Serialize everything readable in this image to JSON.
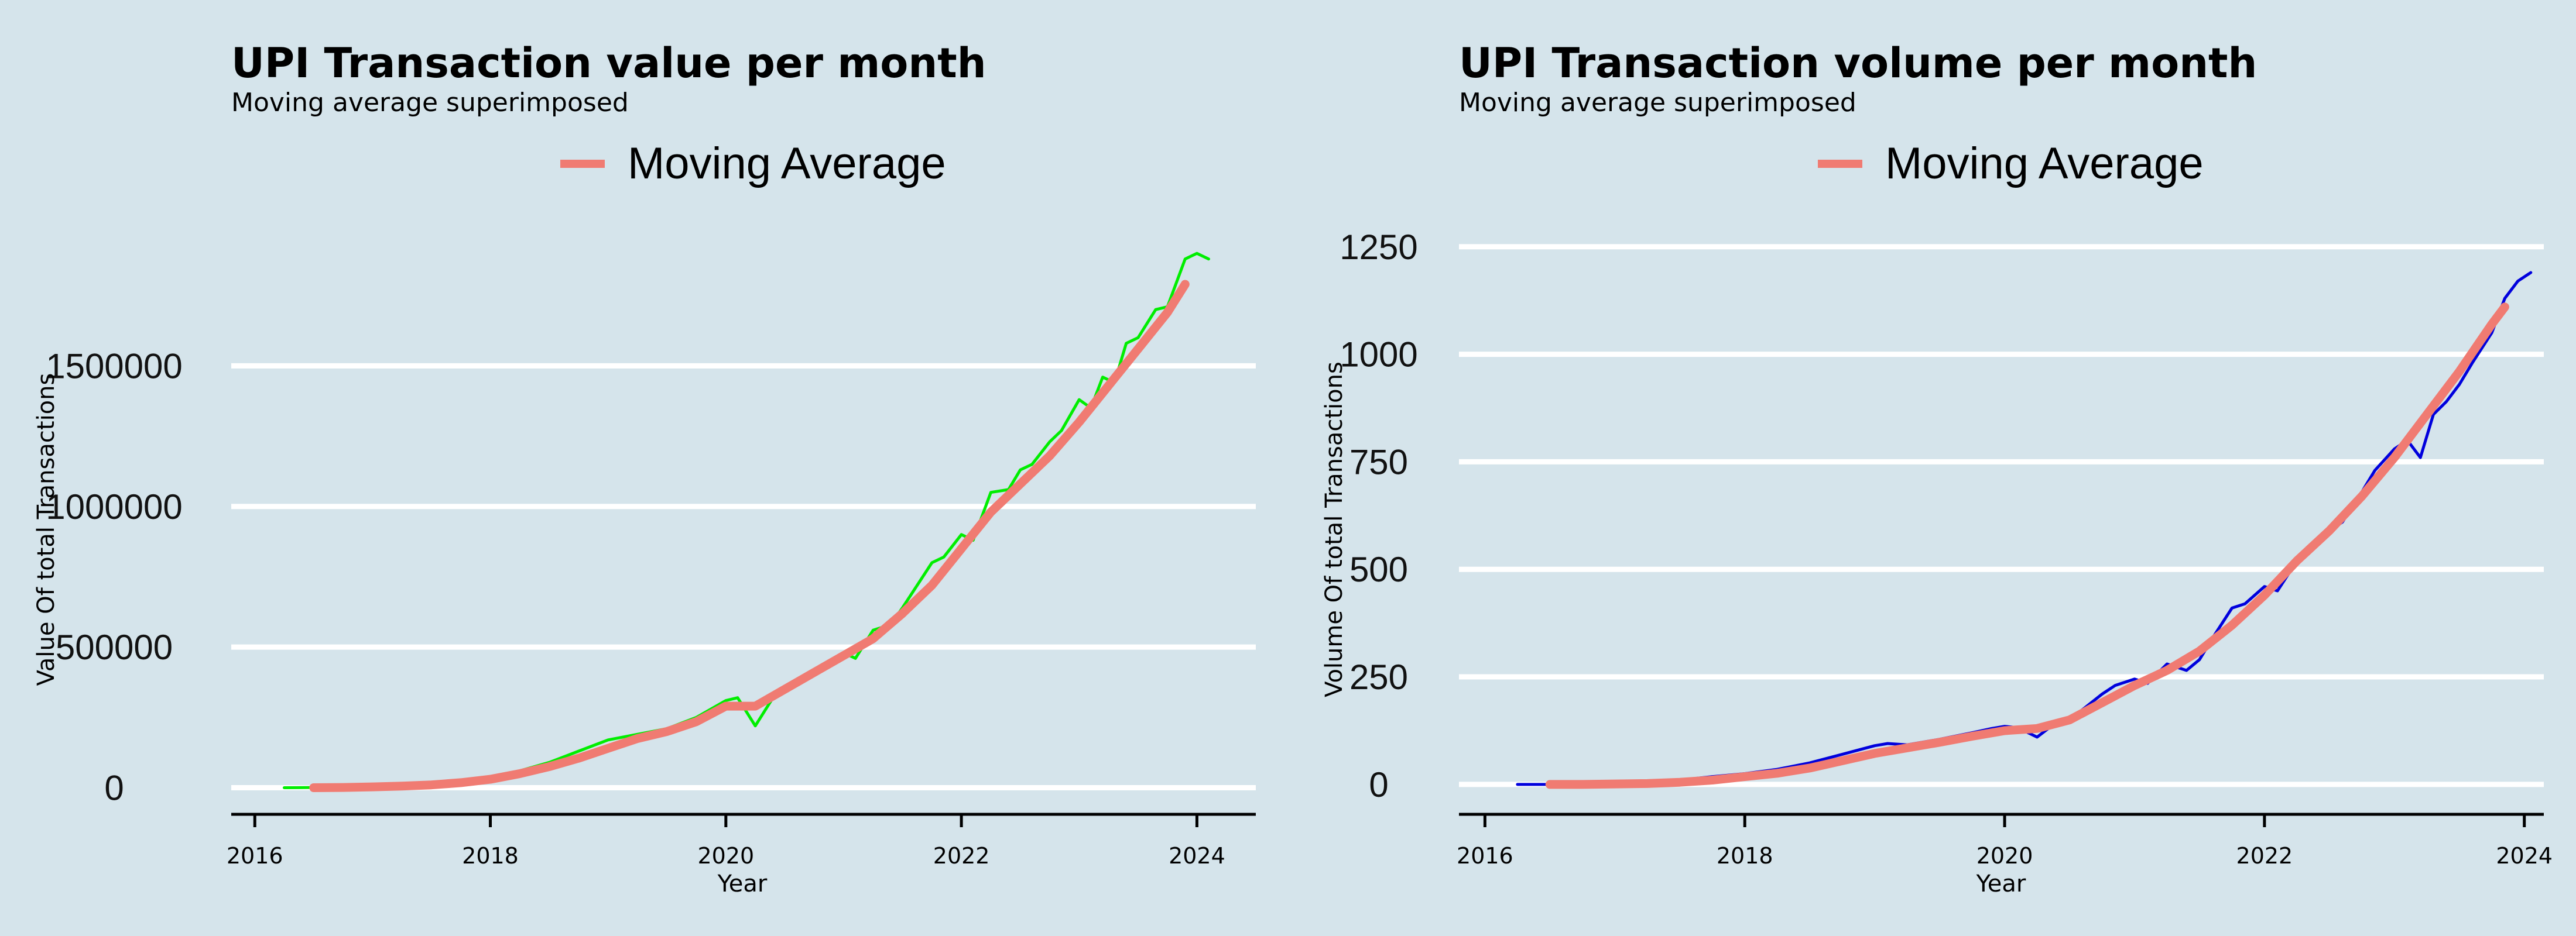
{
  "colors": {
    "background": "#d5e4eb",
    "gridline": "#ffffff",
    "axis": "#000000",
    "moving_average": "#f07b72",
    "value_series": "#00ee00",
    "volume_series": "#0000dd"
  },
  "chart_data": [
    {
      "type": "line",
      "title": "UPI Transaction value per month",
      "subtitle": "Moving average superimposed",
      "xlabel": "Year",
      "ylabel": "Value Of total Transactions",
      "legend": {
        "placement": "top-center",
        "entries": [
          "Moving Average"
        ]
      },
      "grid": "horizontal",
      "xlim": [
        2015.8,
        2024.5
      ],
      "ylim": [
        -80000,
        2000000
      ],
      "x_ticks": [
        2016,
        2018,
        2020,
        2022,
        2024
      ],
      "x_tick_labels": [
        "2016",
        "2018",
        "2020",
        "2022",
        "2024"
      ],
      "y_ticks": [
        0,
        500000,
        1000000,
        1500000
      ],
      "y_tick_labels": [
        "0",
        "500000",
        "1000000",
        "1500000"
      ],
      "series": [
        {
          "style": "monthly",
          "color": "#00ee00",
          "x": [
            2016.25,
            2016.5,
            2016.75,
            2017.0,
            2017.25,
            2017.5,
            2017.75,
            2018.0,
            2018.25,
            2018.5,
            2018.75,
            2019.0,
            2019.25,
            2019.5,
            2019.75,
            2020.0,
            2020.1,
            2020.25,
            2020.4,
            2020.5,
            2020.75,
            2021.0,
            2021.1,
            2021.25,
            2021.4,
            2021.5,
            2021.75,
            2021.85,
            2022.0,
            2022.1,
            2022.25,
            2022.4,
            2022.5,
            2022.6,
            2022.75,
            2022.85,
            2023.0,
            2023.1,
            2023.2,
            2023.3,
            2023.4,
            2023.5,
            2023.65,
            2023.75,
            2023.9,
            2024.0,
            2024.1
          ],
          "y": [
            0,
            1000,
            3000,
            7000,
            10000,
            15000,
            25000,
            40000,
            60000,
            90000,
            130000,
            170000,
            190000,
            210000,
            250000,
            310000,
            320000,
            220000,
            320000,
            350000,
            420000,
            480000,
            460000,
            560000,
            580000,
            640000,
            800000,
            820000,
            900000,
            880000,
            1050000,
            1060000,
            1130000,
            1150000,
            1230000,
            1270000,
            1380000,
            1350000,
            1460000,
            1440000,
            1580000,
            1600000,
            1700000,
            1710000,
            1880000,
            1900000,
            1880000
          ]
        },
        {
          "name": "Moving Average",
          "color": "#f07b72",
          "x": [
            2016.5,
            2016.75,
            2017.0,
            2017.25,
            2017.5,
            2017.75,
            2018.0,
            2018.25,
            2018.5,
            2018.75,
            2019.0,
            2019.25,
            2019.5,
            2019.75,
            2020.0,
            2020.25,
            2020.5,
            2020.75,
            2021.0,
            2021.25,
            2021.5,
            2021.75,
            2022.0,
            2022.25,
            2022.5,
            2022.75,
            2023.0,
            2023.25,
            2023.5,
            2023.75,
            2023.9
          ],
          "y": [
            0,
            1000,
            3000,
            6000,
            10000,
            18000,
            30000,
            50000,
            75000,
            105000,
            140000,
            175000,
            200000,
            235000,
            290000,
            290000,
            350000,
            410000,
            470000,
            530000,
            620000,
            720000,
            850000,
            980000,
            1080000,
            1180000,
            1300000,
            1430000,
            1560000,
            1690000,
            1790000
          ]
        }
      ]
    },
    {
      "type": "line",
      "title": "UPI Transaction volume per month",
      "subtitle": "Moving average superimposed",
      "xlabel": "Year",
      "ylabel": "Volume Of total Transactions",
      "legend": {
        "placement": "top-center",
        "entries": [
          "Moving Average"
        ]
      },
      "grid": "horizontal",
      "xlim": [
        2015.8,
        2024.15
      ],
      "ylim": [
        -60,
        1300
      ],
      "x_ticks": [
        2016,
        2018,
        2020,
        2022,
        2024
      ],
      "x_tick_labels": [
        "2016",
        "2018",
        "2020",
        "2022",
        "2024"
      ],
      "y_ticks": [
        0,
        250,
        500,
        750,
        1000,
        1250
      ],
      "y_tick_labels": [
        "0",
        "250",
        "500",
        "750",
        "1000",
        "1250"
      ],
      "series": [
        {
          "style": "monthly",
          "color": "#0000dd",
          "x": [
            2016.25,
            2016.5,
            2016.75,
            2017.0,
            2017.25,
            2017.5,
            2017.75,
            2018.0,
            2018.25,
            2018.5,
            2018.75,
            2019.0,
            2019.1,
            2019.25,
            2019.5,
            2019.75,
            2019.9,
            2020.0,
            2020.1,
            2020.25,
            2020.4,
            2020.5,
            2020.75,
            2020.85,
            2021.0,
            2021.1,
            2021.25,
            2021.4,
            2021.5,
            2021.6,
            2021.75,
            2021.85,
            2022.0,
            2022.1,
            2022.25,
            2022.4,
            2022.5,
            2022.6,
            2022.75,
            2022.85,
            2023.0,
            2023.1,
            2023.2,
            2023.3,
            2023.4,
            2023.5,
            2023.6,
            2023.75,
            2023.85,
            2023.95,
            2024.05
          ],
          "y": [
            0,
            0,
            1,
            2,
            4,
            10,
            18,
            25,
            35,
            50,
            70,
            90,
            95,
            92,
            105,
            120,
            130,
            135,
            132,
            110,
            145,
            150,
            210,
            230,
            245,
            235,
            280,
            265,
            290,
            340,
            410,
            420,
            460,
            450,
            520,
            560,
            590,
            610,
            680,
            730,
            780,
            800,
            760,
            860,
            890,
            930,
            980,
            1050,
            1130,
            1170,
            1190
          ]
        },
        {
          "name": "Moving Average",
          "color": "#f07b72",
          "x": [
            2016.5,
            2016.75,
            2017.0,
            2017.25,
            2017.5,
            2017.75,
            2018.0,
            2018.25,
            2018.5,
            2018.75,
            2019.0,
            2019.25,
            2019.5,
            2019.75,
            2020.0,
            2020.25,
            2020.5,
            2020.75,
            2021.0,
            2021.25,
            2021.5,
            2021.75,
            2022.0,
            2022.25,
            2022.5,
            2022.75,
            2023.0,
            2023.25,
            2023.5,
            2023.75,
            2023.85
          ],
          "y": [
            0,
            0,
            1,
            2,
            5,
            10,
            18,
            26,
            38,
            55,
            72,
            85,
            98,
            112,
            125,
            130,
            150,
            190,
            230,
            265,
            310,
            370,
            440,
            520,
            590,
            670,
            760,
            860,
            960,
            1070,
            1110
          ]
        }
      ]
    }
  ]
}
